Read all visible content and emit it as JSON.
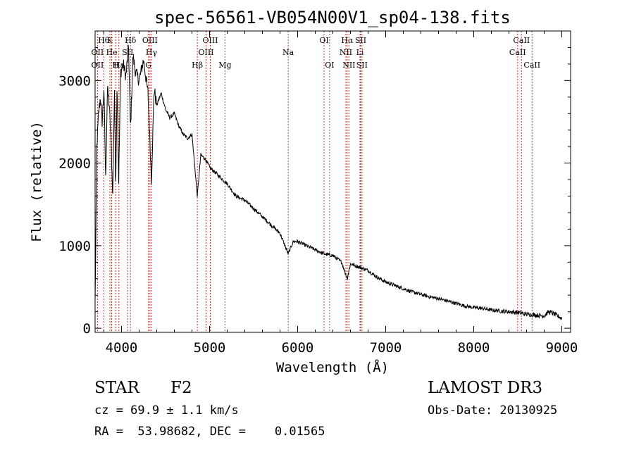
{
  "chart_data": {
    "type": "line",
    "title": "spec-56561-VB054N00V1_sp04-138.fits",
    "xlabel": "Wavelength (Å)",
    "ylabel": "Flux (relative)",
    "xlim": [
      3700,
      9100
    ],
    "ylim": [
      -50,
      3600
    ],
    "xticks": [
      4000,
      5000,
      6000,
      7000,
      8000,
      9000
    ],
    "yticks": [
      0,
      1000,
      2000,
      3000
    ],
    "grid": false,
    "series": [
      {
        "name": "Flux",
        "x": [
          3700,
          3720,
          3740,
          3760,
          3780,
          3800,
          3820,
          3840,
          3860,
          3880,
          3900,
          3920,
          3933,
          3950,
          3968,
          3990,
          4020,
          4050,
          4080,
          4102,
          4130,
          4160,
          4200,
          4250,
          4300,
          4340,
          4370,
          4400,
          4450,
          4500,
          4550,
          4600,
          4650,
          4700,
          4750,
          4800,
          4861,
          4900,
          4950,
          5000,
          5050,
          5100,
          5150,
          5200,
          5300,
          5400,
          5500,
          5600,
          5700,
          5800,
          5893,
          5950,
          6000,
          6100,
          6200,
          6300,
          6400,
          6500,
          6563,
          6600,
          6700,
          6800,
          6900,
          7000,
          7100,
          7200,
          7300,
          7400,
          7500,
          7600,
          7700,
          7800,
          7900,
          8000,
          8100,
          8200,
          8300,
          8400,
          8500,
          8600,
          8700,
          8800,
          8850,
          8900,
          9000
        ],
        "y": [
          300,
          2200,
          2600,
          2800,
          2500,
          2900,
          1800,
          2900,
          2700,
          2300,
          1600,
          2900,
          1700,
          3000,
          1800,
          3100,
          3200,
          3050,
          3400,
          2400,
          3300,
          3100,
          3000,
          3250,
          2850,
          1800,
          2900,
          2700,
          2850,
          2650,
          2550,
          2600,
          2450,
          2350,
          2300,
          2350,
          1600,
          2100,
          2050,
          1950,
          1900,
          1850,
          1800,
          1750,
          1600,
          1550,
          1450,
          1350,
          1250,
          1150,
          900,
          1050,
          1050,
          1000,
          950,
          900,
          880,
          800,
          600,
          780,
          740,
          700,
          620,
          560,
          520,
          480,
          440,
          410,
          380,
          360,
          330,
          300,
          270,
          250,
          240,
          220,
          210,
          200,
          190,
          170,
          160,
          150,
          200,
          180,
          120
        ]
      }
    ],
    "line_markers": [
      {
        "label": "Hθ",
        "x": 3798,
        "row": 1
      },
      {
        "label": "K",
        "x": 3868,
        "row": 1
      },
      {
        "label": "Hδ",
        "x": 4102,
        "row": 1
      },
      {
        "label": "OIII",
        "x": 4323,
        "row": 1
      },
      {
        "label": "OIII",
        "x": 5008,
        "row": 1
      },
      {
        "label": "OI",
        "x": 6300,
        "row": 1
      },
      {
        "label": "Hα",
        "x": 6563,
        "row": 1
      },
      {
        "label": "SII",
        "x": 6716,
        "row": 1
      },
      {
        "label": "CaII",
        "x": 8542,
        "row": 1
      },
      {
        "label": "OII",
        "x": 3727,
        "row": 2
      },
      {
        "label": "He",
        "x": 3889,
        "row": 2
      },
      {
        "label": "SII",
        "x": 4070,
        "row": 2
      },
      {
        "label": "Hγ",
        "x": 4340,
        "row": 2
      },
      {
        "label": "OIII",
        "x": 4960,
        "row": 2
      },
      {
        "label": "Na",
        "x": 5893,
        "row": 2
      },
      {
        "label": "NII",
        "x": 6548,
        "row": 2
      },
      {
        "label": "Li",
        "x": 6708,
        "row": 2
      },
      {
        "label": "CaII",
        "x": 8498,
        "row": 2
      },
      {
        "label": "OII",
        "x": 3727,
        "row": 3
      },
      {
        "label": "Hε",
        "x": 3970,
        "row": 3
      },
      {
        "label": "H",
        "x": 3933,
        "row": 3
      },
      {
        "label": "G",
        "x": 4305,
        "row": 3
      },
      {
        "label": "Hβ",
        "x": 4861,
        "row": 3
      },
      {
        "label": "Mg",
        "x": 5175,
        "row": 3
      },
      {
        "label": "OI",
        "x": 6363,
        "row": 3
      },
      {
        "label": "NII",
        "x": 6583,
        "row": 3
      },
      {
        "label": "SII",
        "x": 6731,
        "row": 3
      },
      {
        "label": "CaII",
        "x": 8662,
        "row": 3
      }
    ]
  },
  "info": {
    "class": "STAR",
    "subclass": "F2",
    "survey": "LAMOST DR3",
    "redshift": "cz = 69.9 ± 1.1 km/s",
    "obs_date": "Obs-Date: 20130925",
    "coords": "RA =  53.98682, DEC =    0.01565"
  }
}
